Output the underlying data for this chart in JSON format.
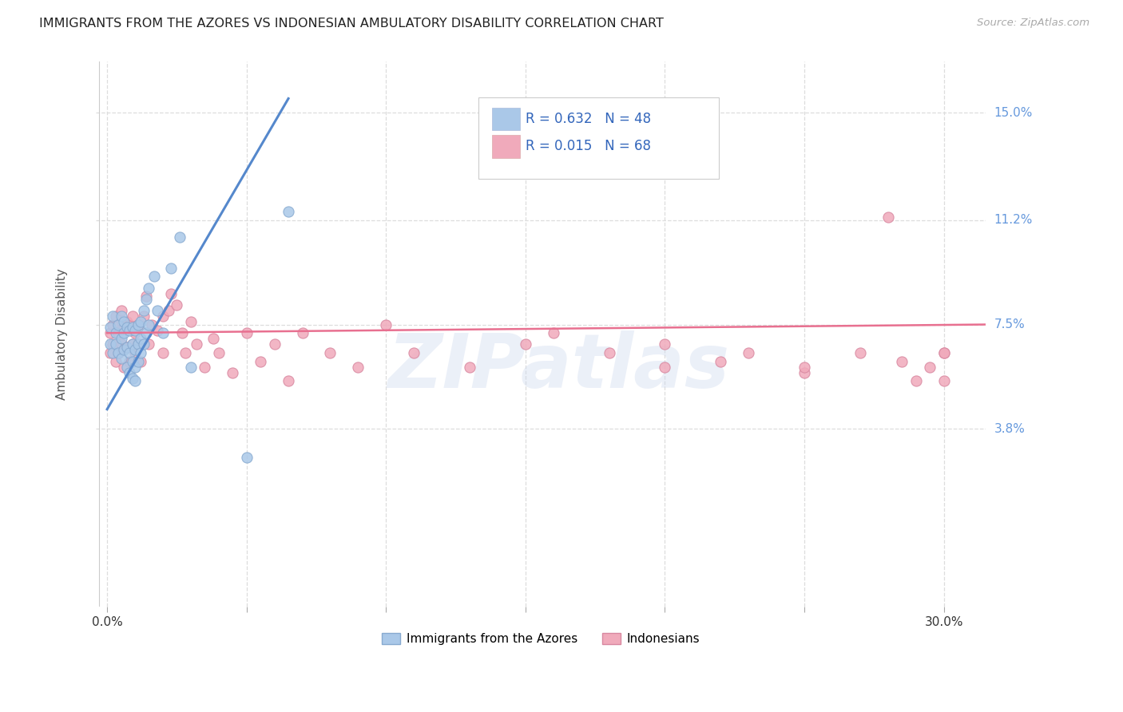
{
  "title": "IMMIGRANTS FROM THE AZORES VS INDONESIAN AMBULATORY DISABILITY CORRELATION CHART",
  "source": "Source: ZipAtlas.com",
  "ylabel": "Ambulatory Disability",
  "yticks": [
    "15.0%",
    "11.2%",
    "7.5%",
    "3.8%"
  ],
  "ytick_vals": [
    0.15,
    0.112,
    0.075,
    0.038
  ],
  "xtick_vals": [
    0.0,
    0.05,
    0.1,
    0.15,
    0.2,
    0.25,
    0.3
  ],
  "ylim": [
    -0.025,
    0.168
  ],
  "xlim": [
    -0.004,
    0.315
  ],
  "legend_r1": "R = 0.632",
  "legend_n1": "N = 48",
  "legend_r2": "R = 0.015",
  "legend_n2": "N = 68",
  "legend_labels": [
    "Immigrants from the Azores",
    "Indonesians"
  ],
  "line1_color": "#5588cc",
  "line2_color": "#e87090",
  "dot1_color": "#aac8e8",
  "dot2_color": "#f0aabb",
  "dot1_edge": "#88aad0",
  "dot2_edge": "#d888a0",
  "title_color": "#222222",
  "axis_color": "#bbbbbb",
  "grid_color": "#dddddd",
  "watermark": "ZIPatlas",
  "azores_x": [
    0.001,
    0.001,
    0.002,
    0.002,
    0.003,
    0.003,
    0.004,
    0.004,
    0.005,
    0.005,
    0.005,
    0.006,
    0.006,
    0.006,
    0.007,
    0.007,
    0.007,
    0.008,
    0.008,
    0.008,
    0.009,
    0.009,
    0.009,
    0.009,
    0.01,
    0.01,
    0.01,
    0.01,
    0.011,
    0.011,
    0.011,
    0.012,
    0.012,
    0.012,
    0.013,
    0.013,
    0.014,
    0.014,
    0.015,
    0.015,
    0.017,
    0.018,
    0.02,
    0.023,
    0.026,
    0.03,
    0.05,
    0.065
  ],
  "azores_y": [
    0.068,
    0.074,
    0.065,
    0.078,
    0.072,
    0.068,
    0.075,
    0.065,
    0.063,
    0.07,
    0.078,
    0.066,
    0.072,
    0.076,
    0.06,
    0.067,
    0.074,
    0.058,
    0.065,
    0.073,
    0.056,
    0.062,
    0.068,
    0.074,
    0.055,
    0.06,
    0.066,
    0.073,
    0.062,
    0.068,
    0.075,
    0.065,
    0.07,
    0.076,
    0.068,
    0.08,
    0.072,
    0.084,
    0.075,
    0.088,
    0.092,
    0.08,
    0.072,
    0.095,
    0.106,
    0.06,
    0.028,
    0.115
  ],
  "indonesian_x": [
    0.001,
    0.001,
    0.002,
    0.002,
    0.003,
    0.003,
    0.004,
    0.004,
    0.005,
    0.005,
    0.006,
    0.006,
    0.007,
    0.007,
    0.008,
    0.008,
    0.009,
    0.009,
    0.01,
    0.01,
    0.011,
    0.011,
    0.012,
    0.013,
    0.014,
    0.015,
    0.016,
    0.018,
    0.02,
    0.02,
    0.022,
    0.023,
    0.025,
    0.027,
    0.028,
    0.03,
    0.032,
    0.035,
    0.038,
    0.04,
    0.045,
    0.05,
    0.055,
    0.06,
    0.065,
    0.07,
    0.08,
    0.09,
    0.1,
    0.11,
    0.13,
    0.15,
    0.16,
    0.18,
    0.2,
    0.22,
    0.25,
    0.27,
    0.285,
    0.29,
    0.295,
    0.3,
    0.3,
    0.3,
    0.28,
    0.25,
    0.23,
    0.2
  ],
  "indonesian_y": [
    0.072,
    0.065,
    0.068,
    0.075,
    0.062,
    0.078,
    0.065,
    0.072,
    0.068,
    0.08,
    0.06,
    0.074,
    0.067,
    0.076,
    0.062,
    0.075,
    0.068,
    0.078,
    0.065,
    0.072,
    0.068,
    0.075,
    0.062,
    0.078,
    0.085,
    0.068,
    0.075,
    0.073,
    0.065,
    0.078,
    0.08,
    0.086,
    0.082,
    0.072,
    0.065,
    0.076,
    0.068,
    0.06,
    0.07,
    0.065,
    0.058,
    0.072,
    0.062,
    0.068,
    0.055,
    0.072,
    0.065,
    0.06,
    0.075,
    0.065,
    0.06,
    0.068,
    0.072,
    0.065,
    0.06,
    0.062,
    0.058,
    0.065,
    0.062,
    0.055,
    0.06,
    0.065,
    0.055,
    0.065,
    0.113,
    0.06,
    0.065,
    0.068
  ],
  "line1_x": [
    0.0,
    0.065
  ],
  "line1_y": [
    0.045,
    0.155
  ],
  "line2_x": [
    0.0,
    0.315
  ],
  "line2_y": [
    0.072,
    0.075
  ]
}
